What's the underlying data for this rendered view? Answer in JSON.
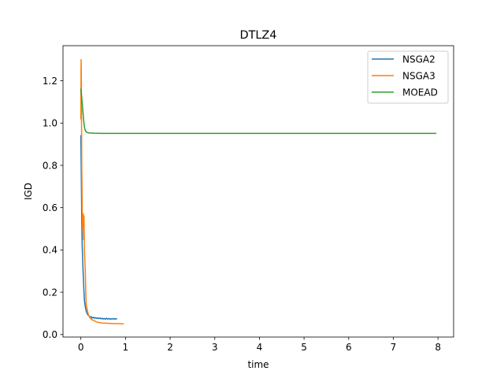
{
  "chart_data": {
    "type": "line",
    "title": "DTLZ4",
    "xlabel": "time",
    "ylabel": "IGD",
    "xlim": [
      -0.4,
      8.35
    ],
    "ylim": [
      -0.012,
      1.366
    ],
    "xticks": [
      0,
      1,
      2,
      3,
      4,
      5,
      6,
      7,
      8
    ],
    "yticks": [
      0.0,
      0.2,
      0.4,
      0.6,
      0.8,
      1.0,
      1.2
    ],
    "xtick_labels": [
      "0",
      "1",
      "2",
      "3",
      "4",
      "5",
      "6",
      "7",
      "8"
    ],
    "ytick_labels": [
      "0.0",
      "0.2",
      "0.4",
      "0.6",
      "0.8",
      "1.0",
      "1.2"
    ],
    "grid": false,
    "legend_position": "upper right",
    "series": [
      {
        "name": "NSGA2",
        "color": "#1f77b4",
        "x": [
          0.0,
          0.01,
          0.02,
          0.03,
          0.04,
          0.05,
          0.06,
          0.07,
          0.08,
          0.1,
          0.12,
          0.15,
          0.18,
          0.2,
          0.23,
          0.25,
          0.28,
          0.3,
          0.33,
          0.35,
          0.38,
          0.4,
          0.43,
          0.45,
          0.48,
          0.5,
          0.53,
          0.55,
          0.58,
          0.6,
          0.63,
          0.65,
          0.68,
          0.7,
          0.73,
          0.75,
          0.78,
          0.8
        ],
        "values": [
          0.94,
          0.75,
          0.55,
          0.42,
          0.36,
          0.3,
          0.25,
          0.2,
          0.16,
          0.13,
          0.11,
          0.095,
          0.088,
          0.082,
          0.085,
          0.078,
          0.082,
          0.077,
          0.08,
          0.076,
          0.079,
          0.075,
          0.078,
          0.074,
          0.077,
          0.073,
          0.076,
          0.072,
          0.077,
          0.073,
          0.076,
          0.072,
          0.075,
          0.073,
          0.076,
          0.072,
          0.075,
          0.074
        ]
      },
      {
        "name": "NSGA3",
        "color": "#ff7f0e",
        "x": [
          0.0,
          0.005,
          0.01,
          0.015,
          0.02,
          0.03,
          0.04,
          0.05,
          0.055,
          0.06,
          0.065,
          0.07,
          0.08,
          0.09,
          0.1,
          0.11,
          0.12,
          0.14,
          0.16,
          0.18,
          0.2,
          0.25,
          0.3,
          0.35,
          0.4,
          0.45,
          0.5,
          0.6,
          0.7,
          0.8,
          0.9,
          0.95
        ],
        "values": [
          1.02,
          1.3,
          1.25,
          1.0,
          0.8,
          0.6,
          0.5,
          0.55,
          0.57,
          0.45,
          0.5,
          0.56,
          0.4,
          0.35,
          0.3,
          0.2,
          0.14,
          0.12,
          0.1,
          0.09,
          0.08,
          0.07,
          0.065,
          0.06,
          0.057,
          0.055,
          0.054,
          0.053,
          0.052,
          0.052,
          0.051,
          0.051
        ]
      },
      {
        "name": "MOEAD",
        "color": "#2ca02c",
        "x": [
          0.0,
          0.02,
          0.04,
          0.06,
          0.08,
          0.1,
          0.12,
          0.15,
          0.2,
          0.3,
          0.5,
          1.0,
          2.0,
          3.0,
          4.0,
          5.0,
          6.0,
          7.0,
          7.95
        ],
        "values": [
          1.16,
          1.12,
          1.07,
          1.02,
          0.98,
          0.965,
          0.958,
          0.955,
          0.953,
          0.952,
          0.951,
          0.951,
          0.951,
          0.951,
          0.951,
          0.951,
          0.951,
          0.951,
          0.951
        ]
      }
    ]
  }
}
